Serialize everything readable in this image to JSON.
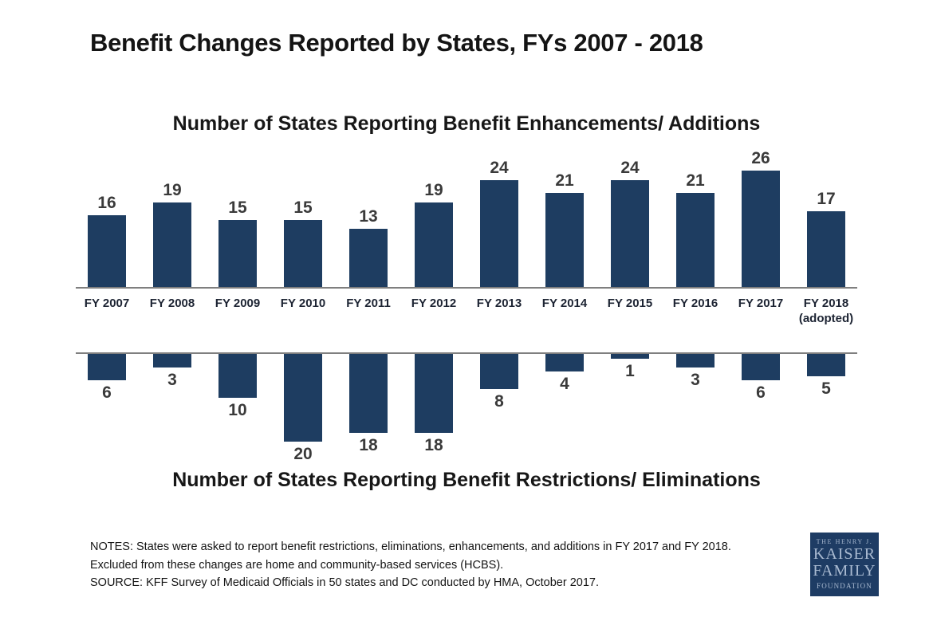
{
  "title": "Benefit Changes Reported by States, FYs 2007 - 2018",
  "chart_data": {
    "type": "bar",
    "categories": [
      "FY 2007",
      "FY 2008",
      "FY 2009",
      "FY 2010",
      "FY 2011",
      "FY 2012",
      "FY 2013",
      "FY 2014",
      "FY 2015",
      "FY 2016",
      "FY 2017",
      "FY 2018"
    ],
    "last_category_note": "(adopted)",
    "series": [
      {
        "name": "Number of States Reporting Benefit Enhancements/ Additions",
        "direction": "up",
        "values": [
          16,
          19,
          15,
          15,
          13,
          19,
          24,
          21,
          24,
          21,
          26,
          17
        ]
      },
      {
        "name": "Number of States Reporting Benefit Restrictions/ Eliminations",
        "direction": "down",
        "values": [
          6,
          3,
          10,
          20,
          18,
          18,
          8,
          4,
          1,
          3,
          6,
          5
        ]
      }
    ],
    "value_labels": true,
    "grid": false,
    "legend_position": "none",
    "bar_color": "#1e3d61",
    "axis_color": "#7f7f7f",
    "ylim_top": [
      0,
      26
    ],
    "ylim_bottom": [
      0,
      20
    ]
  },
  "notes": {
    "line1": "NOTES: States were asked to report benefit restrictions, eliminations, enhancements, and additions in FY 2017 and FY 2018.",
    "line2": "Excluded from these changes are home and community-based services (HCBS).",
    "source": "SOURCE: KFF Survey of Medicaid Officials in 50 states and DC conducted by HMA, October 2017."
  },
  "logo": {
    "line1": "THE HENRY J.",
    "line2": "KAISER",
    "line3": "FAMILY",
    "line4": "FOUNDATION",
    "bg_color": "#1e3c64",
    "text_color": "#a9bad1"
  }
}
